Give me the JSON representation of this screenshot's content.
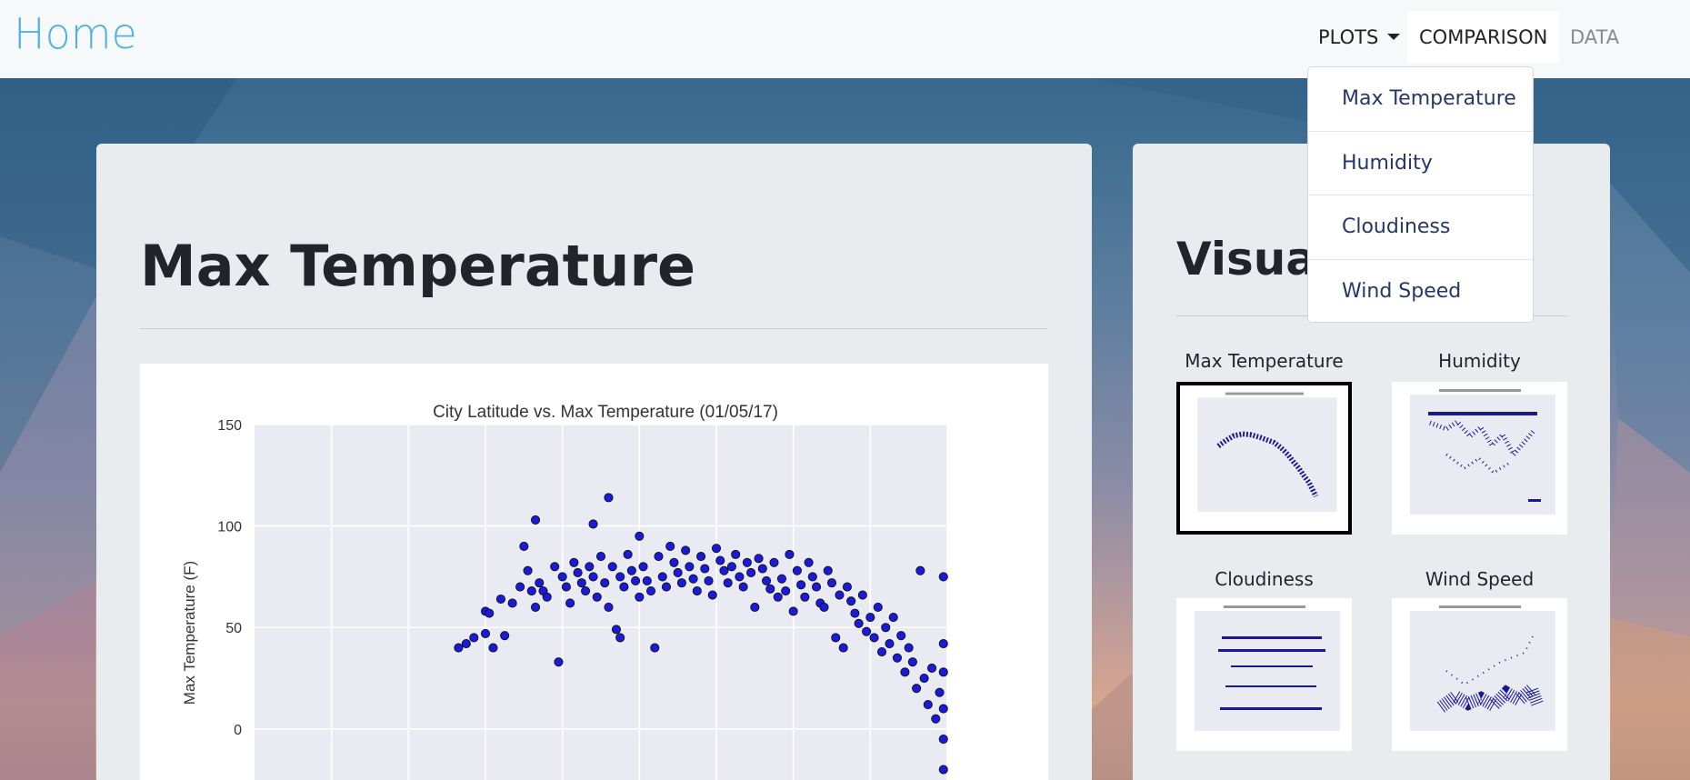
{
  "nav": {
    "brand": "Home",
    "plots_label": "PLOTS",
    "comparison_label": "COMPARISON",
    "data_label": "DATA",
    "dropdown_items": [
      "Max Temperature",
      "Humidity",
      "Cloudiness",
      "Wind Speed"
    ]
  },
  "main": {
    "title": "Max Temperature"
  },
  "side": {
    "title": "Visualiz",
    "thumbs": [
      {
        "label": "Max Temperature",
        "active": true
      },
      {
        "label": "Humidity",
        "active": false
      },
      {
        "label": "Cloudiness",
        "active": false
      },
      {
        "label": "Wind Speed",
        "active": false
      }
    ]
  },
  "colors": {
    "brand": "#4fb3e2",
    "dropdown_text": "#24366a",
    "point_fill": "#1a1adb",
    "plot_bg": "#eaeaf2"
  },
  "chart_data": {
    "type": "scatter",
    "title": "City Latitude vs. Max Temperature (01/05/17)",
    "xlabel": "",
    "ylabel": "Max Temperature (F)",
    "ylim": [
      -35,
      150
    ],
    "yticks": [
      150,
      100,
      50,
      0
    ],
    "x_gridlines": [
      -80,
      -60,
      -40,
      -20,
      0,
      20,
      40,
      60,
      80
    ],
    "xlim": [
      -100,
      80
    ],
    "series": [
      {
        "points": [
          [
            -47,
            40
          ],
          [
            -45,
            42
          ],
          [
            -43,
            45
          ],
          [
            -40,
            58
          ],
          [
            -40,
            47
          ],
          [
            -39,
            57
          ],
          [
            -38,
            40
          ],
          [
            -36,
            64
          ],
          [
            -35,
            46
          ],
          [
            -33,
            62
          ],
          [
            -31,
            70
          ],
          [
            -30,
            90
          ],
          [
            -29,
            78
          ],
          [
            -28,
            68
          ],
          [
            -27,
            60
          ],
          [
            -27,
            103
          ],
          [
            -26,
            72
          ],
          [
            -25,
            68
          ],
          [
            -24,
            65
          ],
          [
            -22,
            80
          ],
          [
            -21,
            33
          ],
          [
            -20,
            75
          ],
          [
            -19,
            70
          ],
          [
            -18,
            62
          ],
          [
            -17,
            82
          ],
          [
            -16,
            77
          ],
          [
            -15,
            72
          ],
          [
            -14,
            68
          ],
          [
            -13,
            80
          ],
          [
            -12,
            75
          ],
          [
            -12,
            101
          ],
          [
            -11,
            65
          ],
          [
            -10,
            85
          ],
          [
            -9,
            72
          ],
          [
            -8,
            60
          ],
          [
            -8,
            114
          ],
          [
            -7,
            80
          ],
          [
            -6,
            49
          ],
          [
            -5,
            45
          ],
          [
            -5,
            75
          ],
          [
            -4,
            70
          ],
          [
            -3,
            86
          ],
          [
            -2,
            78
          ],
          [
            -1,
            73
          ],
          [
            0,
            95
          ],
          [
            0,
            65
          ],
          [
            1,
            80
          ],
          [
            2,
            73
          ],
          [
            3,
            68
          ],
          [
            4,
            40
          ],
          [
            5,
            85
          ],
          [
            6,
            75
          ],
          [
            7,
            70
          ],
          [
            8,
            90
          ],
          [
            9,
            82
          ],
          [
            10,
            77
          ],
          [
            11,
            72
          ],
          [
            12,
            88
          ],
          [
            13,
            80
          ],
          [
            14,
            74
          ],
          [
            15,
            68
          ],
          [
            16,
            85
          ],
          [
            17,
            79
          ],
          [
            18,
            73
          ],
          [
            19,
            66
          ],
          [
            20,
            89
          ],
          [
            21,
            83
          ],
          [
            22,
            78
          ],
          [
            23,
            72
          ],
          [
            24,
            80
          ],
          [
            25,
            86
          ],
          [
            26,
            75
          ],
          [
            27,
            70
          ],
          [
            28,
            82
          ],
          [
            29,
            77
          ],
          [
            30,
            60
          ],
          [
            31,
            84
          ],
          [
            32,
            79
          ],
          [
            33,
            73
          ],
          [
            34,
            69
          ],
          [
            35,
            82
          ],
          [
            36,
            65
          ],
          [
            37,
            74
          ],
          [
            38,
            68
          ],
          [
            39,
            86
          ],
          [
            40,
            58
          ],
          [
            41,
            78
          ],
          [
            42,
            71
          ],
          [
            43,
            65
          ],
          [
            44,
            82
          ],
          [
            45,
            75
          ],
          [
            46,
            70
          ],
          [
            47,
            62
          ],
          [
            48,
            60
          ],
          [
            49,
            78
          ],
          [
            50,
            72
          ],
          [
            51,
            45
          ],
          [
            52,
            66
          ],
          [
            53,
            40
          ],
          [
            54,
            70
          ],
          [
            55,
            63
          ],
          [
            56,
            57
          ],
          [
            57,
            52
          ],
          [
            58,
            66
          ],
          [
            59,
            48
          ],
          [
            60,
            55
          ],
          [
            61,
            45
          ],
          [
            62,
            60
          ],
          [
            63,
            38
          ],
          [
            64,
            50
          ],
          [
            65,
            42
          ],
          [
            66,
            55
          ],
          [
            67,
            35
          ],
          [
            68,
            46
          ],
          [
            69,
            28
          ],
          [
            70,
            40
          ],
          [
            71,
            33
          ],
          [
            72,
            20
          ],
          [
            73,
            78
          ],
          [
            74,
            25
          ],
          [
            75,
            12
          ],
          [
            76,
            30
          ],
          [
            77,
            5
          ],
          [
            78,
            18
          ],
          [
            79,
            75
          ],
          [
            79,
            -5
          ],
          [
            79,
            10
          ],
          [
            79,
            28
          ],
          [
            79,
            -20
          ],
          [
            79,
            42
          ]
        ]
      }
    ]
  }
}
